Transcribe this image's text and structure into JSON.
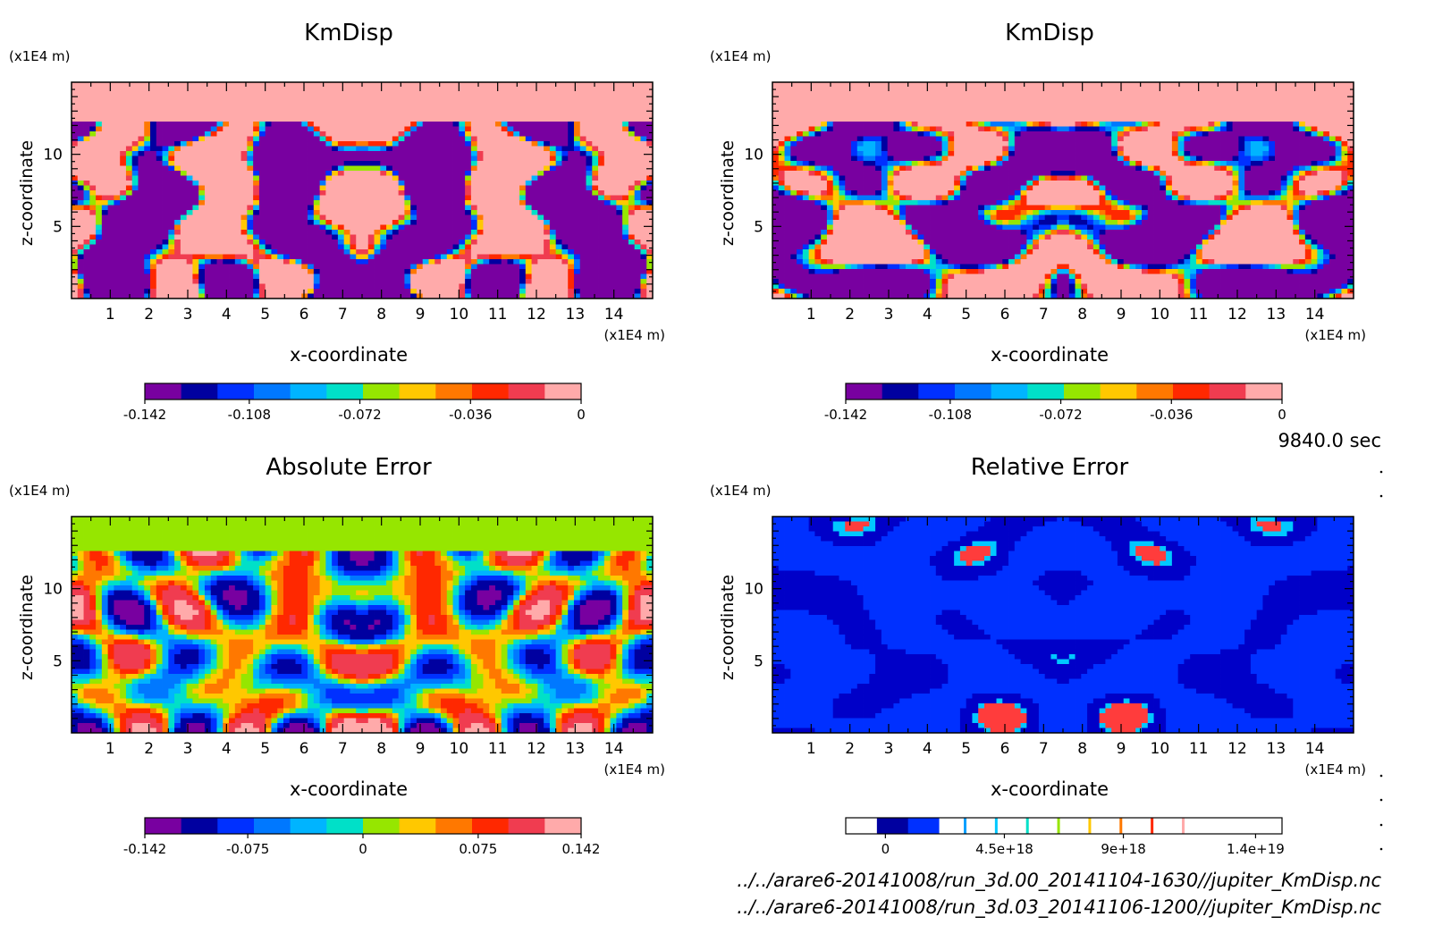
{
  "time_label": "9840.0 sec",
  "files": [
    "../../arare6-20141008/run_3d.00_20141104-1630//jupiter_KmDisp.nc",
    "../../arare6-20141008/run_3d.03_20141106-1200//jupiter_KmDisp.nc"
  ],
  "chart_data": [
    {
      "type": "heatmap",
      "title": "KmDisp",
      "xlabel": "x-coordinate",
      "ylabel": "z-coordinate",
      "x_unit": "(x1E4 m)",
      "y_unit": "(x1E4 m)",
      "xlim": [
        0,
        15
      ],
      "ylim": [
        0,
        15
      ],
      "xticks": [
        1,
        2,
        3,
        4,
        5,
        6,
        7,
        8,
        9,
        10,
        11,
        12,
        13,
        14
      ],
      "yticks": [
        5,
        10
      ],
      "colorbar": {
        "colors": [
          "#7800a0",
          "#0000a0",
          "#0030ff",
          "#0078ff",
          "#00b4ff",
          "#00e0c8",
          "#96e600",
          "#ffc800",
          "#ff7800",
          "#ff2800",
          "#f03c50",
          "#ffaaaa"
        ],
        "tick_labels": [
          "-0.142",
          "-0.108",
          "-0.072",
          "-0.036",
          "0"
        ],
        "tick_values": [
          -0.142,
          -0.108,
          -0.072,
          -0.036,
          0
        ],
        "range": [
          -0.142,
          0
        ]
      }
    },
    {
      "type": "heatmap",
      "title": "KmDisp",
      "xlabel": "x-coordinate",
      "ylabel": "z-coordinate",
      "x_unit": "(x1E4 m)",
      "y_unit": "(x1E4 m)",
      "xlim": [
        0,
        15
      ],
      "ylim": [
        0,
        15
      ],
      "xticks": [
        1,
        2,
        3,
        4,
        5,
        6,
        7,
        8,
        9,
        10,
        11,
        12,
        13,
        14
      ],
      "yticks": [
        5,
        10
      ],
      "colorbar": {
        "colors": [
          "#7800a0",
          "#0000a0",
          "#0030ff",
          "#0078ff",
          "#00b4ff",
          "#00e0c8",
          "#96e600",
          "#ffc800",
          "#ff7800",
          "#ff2800",
          "#f03c50",
          "#ffaaaa"
        ],
        "tick_labels": [
          "-0.142",
          "-0.108",
          "-0.072",
          "-0.036",
          "0"
        ],
        "tick_values": [
          -0.142,
          -0.108,
          -0.072,
          -0.036,
          0
        ],
        "range": [
          -0.142,
          0
        ]
      }
    },
    {
      "type": "heatmap",
      "title": "Absolute Error",
      "xlabel": "x-coordinate",
      "ylabel": "z-coordinate",
      "x_unit": "(x1E4 m)",
      "y_unit": "(x1E4 m)",
      "xlim": [
        0,
        15
      ],
      "ylim": [
        0,
        15
      ],
      "xticks": [
        1,
        2,
        3,
        4,
        5,
        6,
        7,
        8,
        9,
        10,
        11,
        12,
        13,
        14
      ],
      "yticks": [
        5,
        10
      ],
      "colorbar": {
        "colors": [
          "#7800a0",
          "#0000a0",
          "#0030ff",
          "#0078ff",
          "#00b4ff",
          "#00e0c8",
          "#96e600",
          "#ffc800",
          "#ff7800",
          "#ff2800",
          "#f03c50",
          "#ffaaaa"
        ],
        "tick_labels": [
          "-0.142",
          "-0.075",
          "0",
          "0.075",
          "0.142"
        ],
        "tick_values": [
          -0.142,
          -0.075,
          0,
          0.075,
          0.142
        ],
        "range": [
          -0.142,
          0.142
        ]
      }
    },
    {
      "type": "heatmap",
      "title": "Relative Error",
      "xlabel": "x-coordinate",
      "ylabel": "z-coordinate",
      "x_unit": "(x1E4 m)",
      "y_unit": "(x1E4 m)",
      "xlim": [
        0,
        15
      ],
      "ylim": [
        0,
        15
      ],
      "xticks": [
        1,
        2,
        3,
        4,
        5,
        6,
        7,
        8,
        9,
        10,
        11,
        12,
        13,
        14
      ],
      "yticks": [
        5,
        10
      ],
      "colorbar": {
        "colors": [
          "#ffffff",
          "#0000a0",
          "#0030ff",
          "#ffffff",
          "#ffffff",
          "#ffffff",
          "#ffffff",
          "#ffffff",
          "#ffffff",
          "#ffffff",
          "#ffffff",
          "#ffffff",
          "#ffffff",
          "#ffffff"
        ],
        "tick_labels": [
          "0",
          "4.5e+18",
          "9e+18",
          "1.4e+19"
        ],
        "tick_values": [
          0,
          4.5e+18,
          9e+18,
          1.4e+19
        ],
        "range": [
          -1.5e+18,
          1.5e+19
        ]
      }
    }
  ]
}
